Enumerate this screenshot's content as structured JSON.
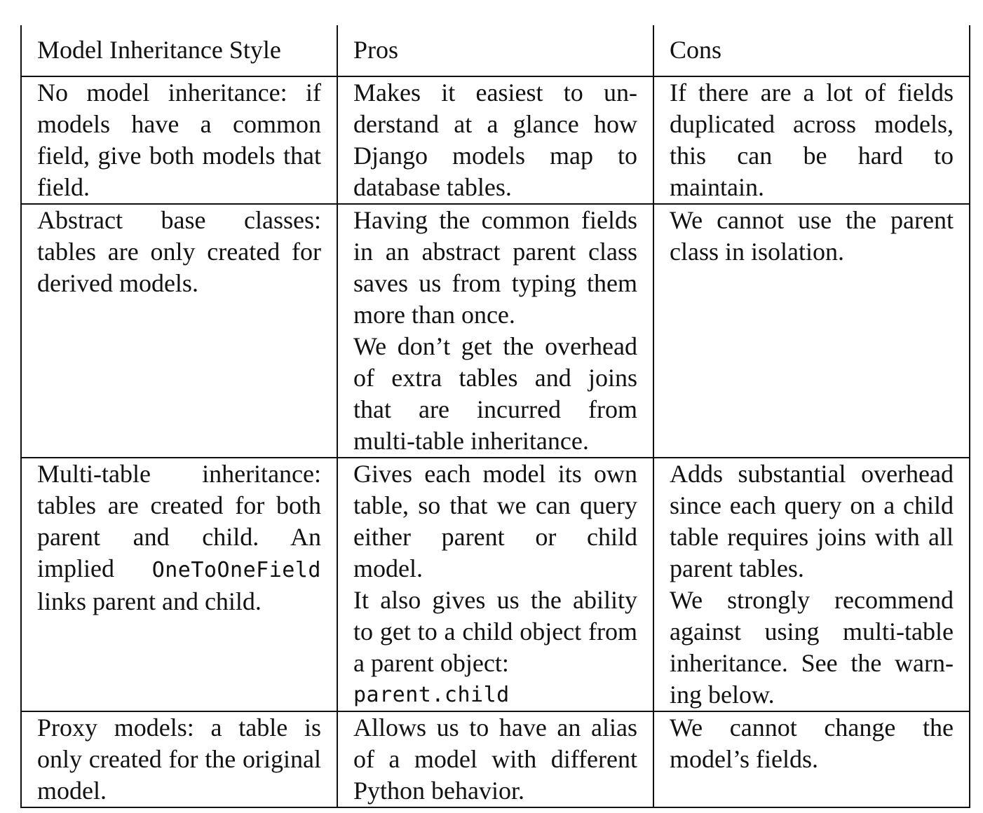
{
  "table": {
    "headers": [
      "Model Inheritance Style",
      "Pros",
      "Cons"
    ],
    "rows": [
      {
        "style": "No model inheritance: if models have a common field, give both models that field.",
        "pros": [
          "Makes it easiest to un­derstand at a glance how Django models map to database tables."
        ],
        "cons": [
          "If there are a lot of fields du­plicated across models, this can be hard to maintain."
        ]
      },
      {
        "style": "Abstract base classes: tables are only created for derived models.",
        "pros": [
          "Having the common fields in an abstract parent class saves us from typing them more than once.",
          "We don’t get the over­head of extra tables and joins that are incurred from multi-table inheritance."
        ],
        "cons": [
          "We cannot use the parent class in isolation."
        ]
      },
      {
        "style_prefix": "Multi-table inheritance: tables are created for both parent and child. An implied ",
        "style_code": "OneToOneField",
        "style_suffix": " links parent and child.",
        "pros": [
          "Gives each model its own table, so that we can query either parent or child model.",
          "It also gives us the abil­ity to get to a child ob­ject from a parent object:"
        ],
        "pros_code": "parent.child",
        "cons": [
          "Adds substantial overhead since each query on a child table requires joins with all parent tables.",
          "We strongly recommend against using multi-table inheritance. See the warn­ing below."
        ]
      },
      {
        "style": "Proxy models: a table is only created for the original model.",
        "pros": [
          "Allows us to have an alias of a model with different Python behavior."
        ],
        "cons": [
          "We cannot change the model’s fields."
        ]
      }
    ]
  }
}
